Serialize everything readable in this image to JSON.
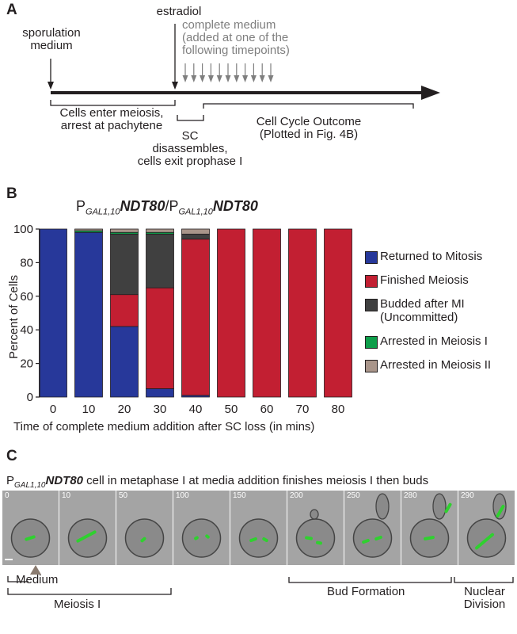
{
  "panelA": {
    "letter": "A",
    "estradiol": "estradiol",
    "sporulation_line1": "sporulation",
    "sporulation_line2": "medium",
    "complete_line1": "complete medium",
    "complete_line2": "(added at one of the",
    "complete_line3": "following timepoints)",
    "bracket1_line1": "Cells enter meiosis,",
    "bracket1_line2": "arrest at pachytene",
    "sc_line1": "SC",
    "sc_line2": "disassembles,",
    "sc_line3": "cells exit prophase I",
    "outcome_line1": "Cell Cycle Outcome",
    "outcome_line2": "(Plotted in Fig. 4B)"
  },
  "panelB": {
    "letter": "B",
    "title_p1": "P",
    "title_sub1": "GAL1,10",
    "title_gene1": "NDT80",
    "title_slash": "/P",
    "title_sub2": "GAL1,10",
    "title_gene2": "NDT80",
    "legend": [
      {
        "label": "Returned to Mitosis",
        "color": "#27389a"
      },
      {
        "label": "Finished Meiosis",
        "color": "#c21f32"
      },
      {
        "label": "Budded after MI",
        "label2": "(Uncommitted)",
        "color": "#404040"
      },
      {
        "label": "Arrested in Meiosis I",
        "color": "#0e9e4a"
      },
      {
        "label": "Arrested in Meiosis II",
        "color": "#a9958a"
      }
    ]
  },
  "chart_data": {
    "type": "bar",
    "stacked": true,
    "categories": [
      "0",
      "10",
      "20",
      "30",
      "40",
      "50",
      "60",
      "70",
      "80"
    ],
    "series": [
      {
        "name": "Returned to Mitosis",
        "color": "#27389a",
        "values": [
          100,
          98,
          42,
          5,
          1,
          0,
          0,
          0,
          0
        ]
      },
      {
        "name": "Finished Meiosis",
        "color": "#c21f32",
        "values": [
          0,
          0,
          19,
          60,
          93,
          100,
          100,
          100,
          100
        ]
      },
      {
        "name": "Budded after MI (Uncommitted)",
        "color": "#404040",
        "values": [
          0,
          0,
          36,
          32,
          3,
          0,
          0,
          0,
          0
        ]
      },
      {
        "name": "Arrested in Meiosis I",
        "color": "#0e9e4a",
        "values": [
          0,
          1,
          1,
          1,
          0,
          0,
          0,
          0,
          0
        ]
      },
      {
        "name": "Arrested in Meiosis II",
        "color": "#a9958a",
        "values": [
          0,
          1,
          2,
          2,
          3,
          0,
          0,
          0,
          0
        ]
      }
    ],
    "ylim": [
      0,
      100
    ],
    "yticks": [
      "0",
      "20",
      "40",
      "60",
      "80",
      "100"
    ],
    "ylabel": "Percent of Cells",
    "xlabel": "Time of complete medium addition after SC loss (in mins)",
    "legend_position": "right",
    "grid": false
  },
  "panelC": {
    "letter": "C",
    "caption_p": "P",
    "caption_sub": "GAL1,10",
    "caption_gene": "NDT80",
    "caption_rest": " cell in metaphase I at media addition finishes meiosis I then buds",
    "frame_times": [
      "0",
      "10",
      "50",
      "100",
      "150",
      "200",
      "250",
      "280",
      "290"
    ],
    "medium": "Medium",
    "meiosis1": "Meiosis I",
    "bud_formation": "Bud Formation",
    "nuclear_line1": "Nuclear",
    "nuclear_line2": "Division"
  }
}
